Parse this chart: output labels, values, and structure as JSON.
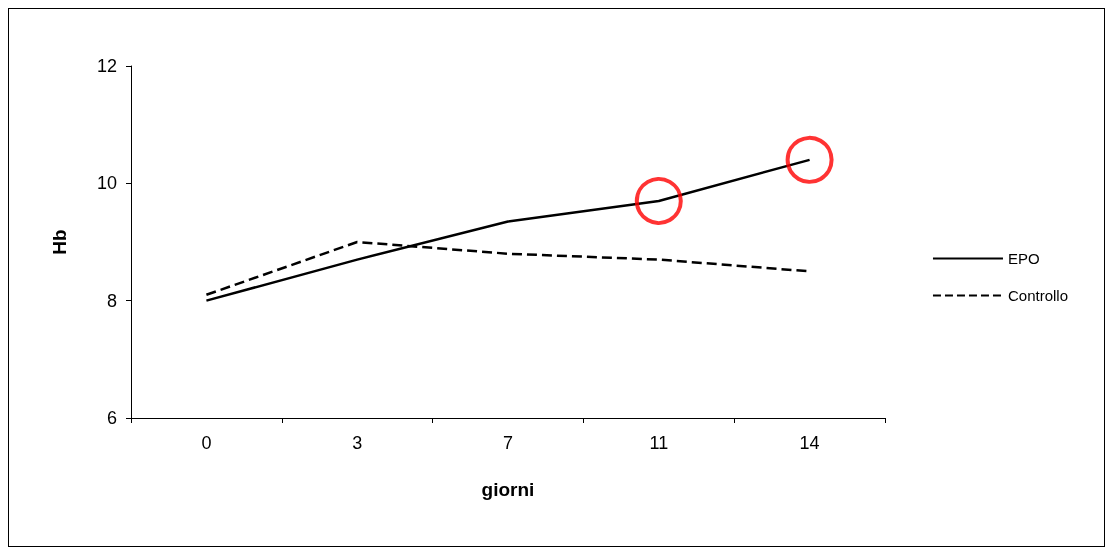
{
  "chart_data": {
    "type": "line",
    "xlabel": "giorni",
    "ylabel": "Hb",
    "categories": [
      "0",
      "3",
      "7",
      "11",
      "14"
    ],
    "ylim": [
      6,
      12
    ],
    "yticks": [
      6,
      8,
      10,
      12
    ],
    "grid": false,
    "legend": "right",
    "marker": "none",
    "series": [
      {
        "name": "EPO",
        "color": "#000000",
        "values": [
          8.0,
          8.7,
          9.35,
          9.7,
          10.4
        ],
        "line_style": "solid"
      },
      {
        "name": "Controllo",
        "color": "#000000",
        "values": [
          8.1,
          9.0,
          8.8,
          8.7,
          8.5
        ],
        "line_style": "dashed"
      },
      {
        "type": "scatter",
        "color": "#ff0000",
        "marker": "circle",
        "values": [
          null,
          null,
          null,
          9.7,
          10.4
        ]
      }
    ]
  }
}
